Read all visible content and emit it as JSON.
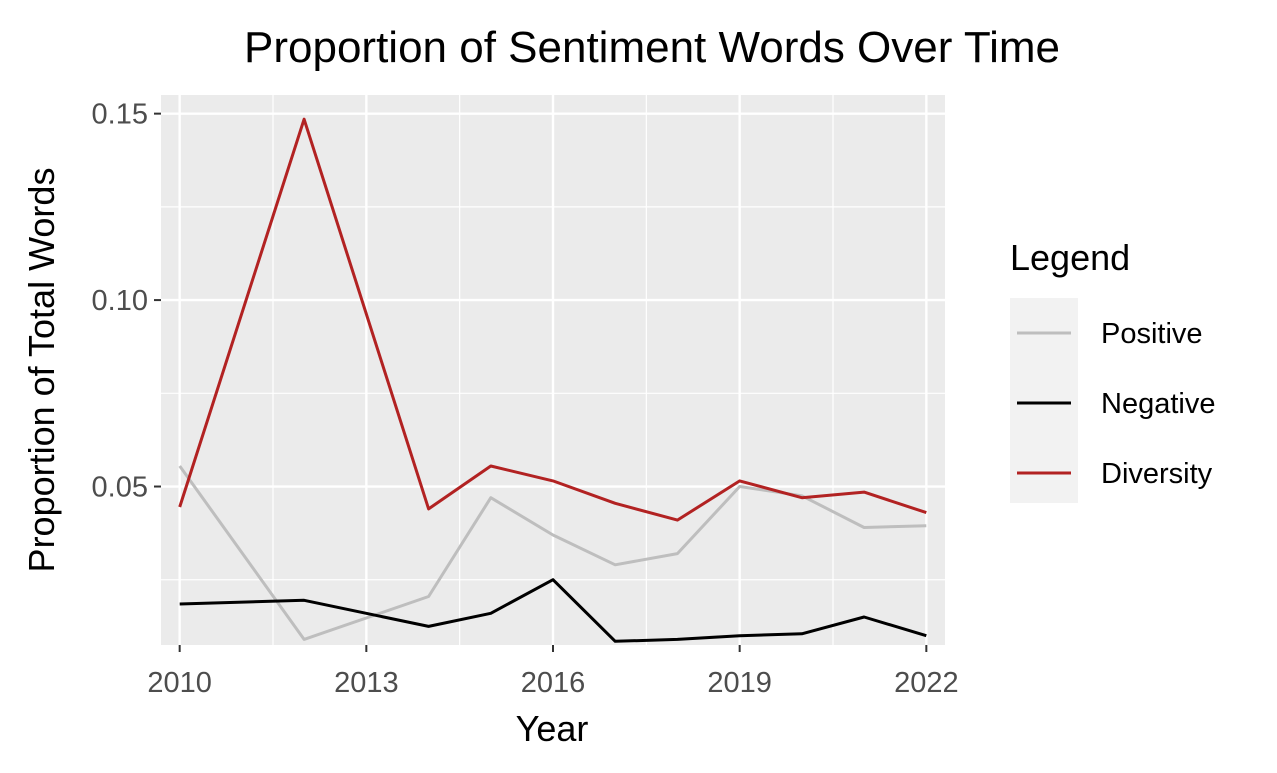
{
  "chart_data": {
    "type": "line",
    "title": "Proportion of Sentiment Words Over Time",
    "xlabel": "Year",
    "ylabel": "Proportion of Total Words",
    "xlim": [
      2009.7,
      2022.3
    ],
    "ylim": [
      0.0075,
      0.155
    ],
    "x_ticks": [
      2010,
      2013,
      2016,
      2019,
      2022
    ],
    "x_tick_labels": [
      "2010",
      "2013",
      "2016",
      "2019",
      "2022"
    ],
    "y_ticks": [
      0.05,
      0.1,
      0.15
    ],
    "y_tick_labels": [
      "0.05",
      "0.10",
      "0.15"
    ],
    "grid": true,
    "legend": {
      "title": "Legend",
      "position": "right"
    },
    "x": [
      2010,
      2012,
      2014,
      2015,
      2016,
      2017,
      2018,
      2019,
      2020,
      2021,
      2022
    ],
    "series": [
      {
        "name": "Positive",
        "color": "#bebebe",
        "values": [
          0.0555,
          0.009,
          0.0205,
          0.047,
          0.037,
          0.029,
          0.032,
          0.05,
          0.0475,
          0.039,
          0.0395
        ]
      },
      {
        "name": "Negative",
        "color": "#000000",
        "values": [
          0.0185,
          0.0195,
          0.0125,
          0.016,
          0.025,
          0.0085,
          0.009,
          0.01,
          0.0105,
          0.015,
          0.01
        ]
      },
      {
        "name": "Diversity",
        "color": "#b22222",
        "values": [
          0.0445,
          0.1485,
          0.044,
          0.0555,
          0.0515,
          0.0455,
          0.041,
          0.0515,
          0.047,
          0.0485,
          0.043
        ]
      }
    ]
  }
}
